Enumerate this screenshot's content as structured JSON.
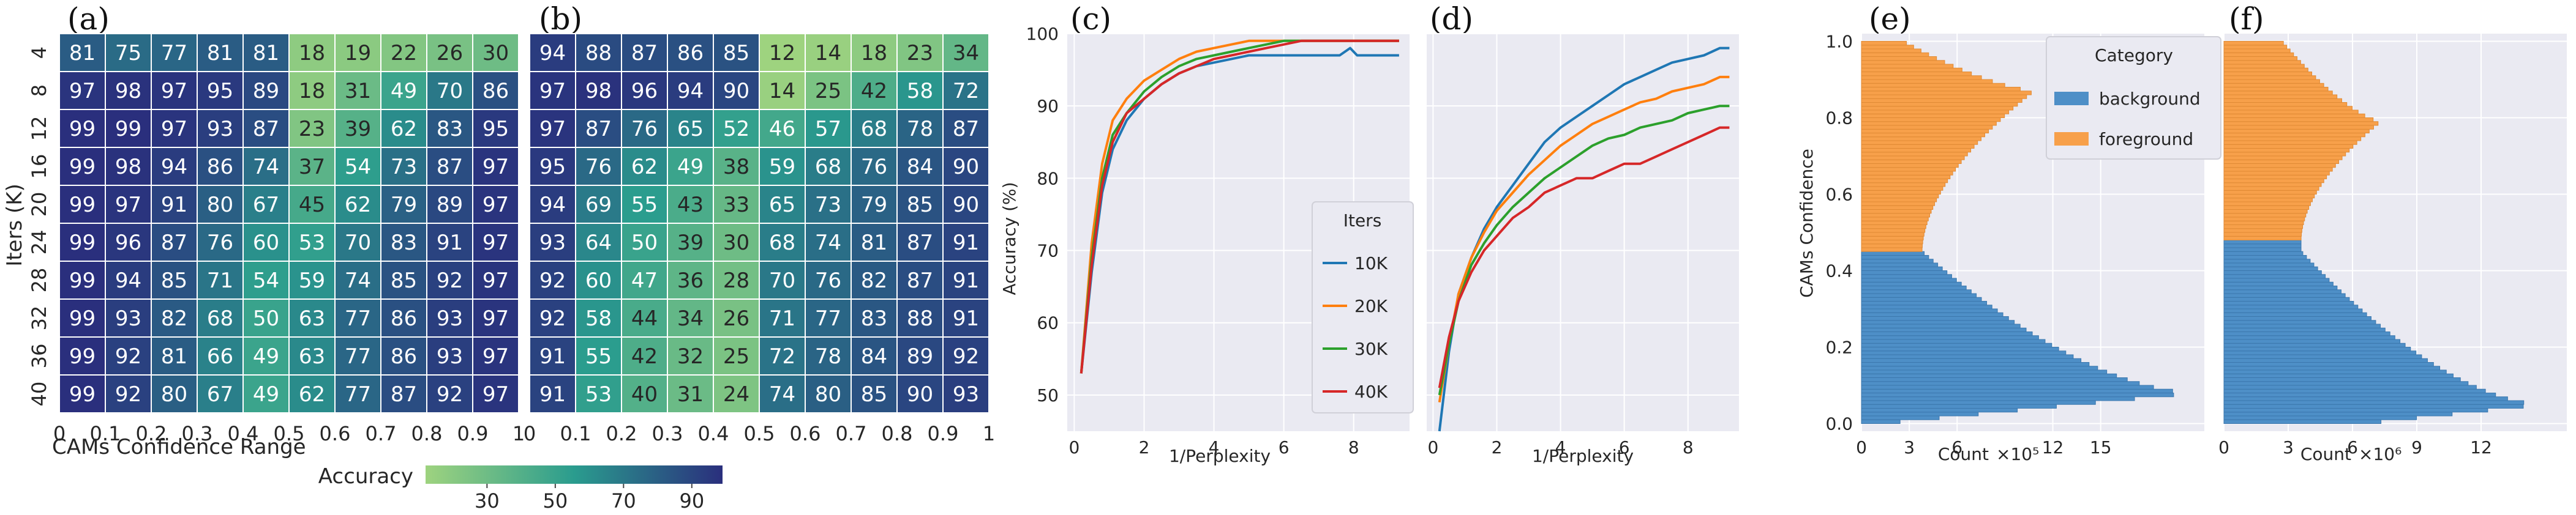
{
  "colors": {
    "heat_low": "#9ed37f",
    "heat_mid": "#2a9c8e",
    "heat_high": "#2a2f7d",
    "panel_bg": "#eaeaf2",
    "grid": "#ffffff",
    "series": [
      "#1f77b4",
      "#ff7f0e",
      "#2ca02c",
      "#d62728"
    ],
    "hist_background": "#4e8fc7",
    "hist_foreground": "#f7a04a"
  },
  "chart_data": [
    {
      "id": "a",
      "label": "(a)",
      "type": "heatmap",
      "ylabel": "Iters (K)",
      "xlabel": "CAMs Confidence Range",
      "rows": [
        "4",
        "8",
        "12",
        "16",
        "20",
        "24",
        "28",
        "32",
        "36",
        "40"
      ],
      "xticks": [
        "0",
        "0.1",
        "0.2",
        "0.3",
        "0.4",
        "0.5",
        "0.6",
        "0.7",
        "0.8",
        "0.9",
        "1"
      ],
      "values": [
        [
          81,
          75,
          77,
          81,
          81,
          18,
          19,
          22,
          26,
          30
        ],
        [
          97,
          98,
          97,
          95,
          89,
          18,
          31,
          49,
          70,
          86
        ],
        [
          99,
          99,
          97,
          93,
          87,
          23,
          39,
          62,
          83,
          95
        ],
        [
          99,
          98,
          94,
          86,
          74,
          37,
          54,
          73,
          87,
          97
        ],
        [
          99,
          97,
          91,
          80,
          67,
          45,
          62,
          79,
          89,
          97
        ],
        [
          99,
          96,
          87,
          76,
          60,
          53,
          70,
          83,
          91,
          97
        ],
        [
          99,
          94,
          85,
          71,
          54,
          59,
          74,
          85,
          92,
          97
        ],
        [
          99,
          93,
          82,
          68,
          50,
          63,
          77,
          86,
          93,
          97
        ],
        [
          99,
          92,
          81,
          66,
          49,
          63,
          77,
          86,
          93,
          97
        ],
        [
          99,
          92,
          80,
          67,
          49,
          62,
          77,
          87,
          92,
          97
        ]
      ]
    },
    {
      "id": "b",
      "label": "(b)",
      "type": "heatmap",
      "xticks": [
        "0",
        "0.1",
        "0.2",
        "0.3",
        "0.4",
        "0.5",
        "0.6",
        "0.7",
        "0.8",
        "0.9",
        "1"
      ],
      "values": [
        [
          94,
          88,
          87,
          86,
          85,
          12,
          14,
          18,
          23,
          34
        ],
        [
          97,
          98,
          96,
          94,
          90,
          14,
          25,
          42,
          58,
          72
        ],
        [
          97,
          87,
          76,
          65,
          52,
          46,
          57,
          68,
          78,
          87
        ],
        [
          95,
          76,
          62,
          49,
          38,
          59,
          68,
          76,
          84,
          90
        ],
        [
          94,
          69,
          55,
          43,
          33,
          65,
          73,
          79,
          85,
          90
        ],
        [
          93,
          64,
          50,
          39,
          30,
          68,
          74,
          81,
          87,
          91
        ],
        [
          92,
          60,
          47,
          36,
          28,
          70,
          76,
          82,
          87,
          91
        ],
        [
          92,
          58,
          44,
          34,
          26,
          71,
          77,
          83,
          88,
          91
        ],
        [
          91,
          55,
          42,
          32,
          25,
          72,
          78,
          84,
          89,
          92
        ],
        [
          91,
          53,
          40,
          31,
          24,
          74,
          80,
          85,
          90,
          93
        ]
      ]
    },
    {
      "id": "colorbar",
      "type": "heatmap",
      "title": "Accuracy",
      "range": [
        12,
        99
      ],
      "ticks": [
        "30",
        "50",
        "70",
        "90"
      ]
    },
    {
      "id": "c",
      "label": "(c)",
      "type": "line",
      "xlabel": "1/Perplexity",
      "ylabel": "Accuracy (%)",
      "xlim": [
        -0.2,
        9.6
      ],
      "ylim": [
        45,
        100
      ],
      "xticks": [
        "0",
        "2",
        "4",
        "6",
        "8"
      ],
      "yticks": [
        "50",
        "60",
        "70",
        "80",
        "90",
        "100"
      ],
      "legend": {
        "title": "Iters",
        "position": "lower-right"
      },
      "series": [
        {
          "name": "10K",
          "points": [
            [
              0.2,
              53
            ],
            [
              0.5,
              67
            ],
            [
              0.8,
              78
            ],
            [
              1.1,
              84
            ],
            [
              1.5,
              88
            ],
            [
              2,
              91
            ],
            [
              2.5,
              93
            ],
            [
              3,
              94.5
            ],
            [
              3.5,
              95.5
            ],
            [
              4,
              96
            ],
            [
              4.5,
              96.5
            ],
            [
              5,
              97
            ],
            [
              6,
              97
            ],
            [
              7,
              97
            ],
            [
              7.6,
              97
            ],
            [
              7.9,
              98
            ],
            [
              8.1,
              97
            ],
            [
              9.3,
              97
            ]
          ]
        },
        {
          "name": "20K",
          "points": [
            [
              0.2,
              53
            ],
            [
              0.5,
              71
            ],
            [
              0.8,
              82
            ],
            [
              1.1,
              88
            ],
            [
              1.5,
              91
            ],
            [
              2,
              93.5
            ],
            [
              2.5,
              95
            ],
            [
              3,
              96.5
            ],
            [
              3.5,
              97.5
            ],
            [
              4,
              98
            ],
            [
              4.5,
              98.5
            ],
            [
              5,
              99
            ],
            [
              9.3,
              99
            ]
          ]
        },
        {
          "name": "30K",
          "points": [
            [
              0.2,
              53
            ],
            [
              0.5,
              69
            ],
            [
              0.8,
              80
            ],
            [
              1.1,
              86
            ],
            [
              1.5,
              89
            ],
            [
              2,
              92
            ],
            [
              2.5,
              94
            ],
            [
              3,
              95.5
            ],
            [
              3.5,
              96.5
            ],
            [
              4,
              97
            ],
            [
              4.5,
              97.5
            ],
            [
              5,
              98
            ],
            [
              5.5,
              98.5
            ],
            [
              6,
              99
            ],
            [
              9.3,
              99
            ]
          ]
        },
        {
          "name": "40K",
          "points": [
            [
              0.2,
              53
            ],
            [
              0.5,
              68
            ],
            [
              0.8,
              79
            ],
            [
              1.1,
              85
            ],
            [
              1.5,
              89
            ],
            [
              2,
              91
            ],
            [
              2.5,
              93
            ],
            [
              3,
              94.5
            ],
            [
              3.5,
              95.5
            ],
            [
              4,
              96.5
            ],
            [
              4.5,
              97
            ],
            [
              5,
              97.5
            ],
            [
              5.5,
              98
            ],
            [
              6,
              98.5
            ],
            [
              6.5,
              99
            ],
            [
              9.3,
              99
            ]
          ]
        }
      ]
    },
    {
      "id": "d",
      "label": "(d)",
      "type": "line",
      "xlabel": "1/Perplexity",
      "xlim": [
        -0.2,
        9.6
      ],
      "ylim": [
        45,
        100
      ],
      "xticks": [
        "0",
        "2",
        "4",
        "6",
        "8"
      ],
      "series": [
        {
          "name": "10K",
          "points": [
            [
              0.2,
              45
            ],
            [
              0.5,
              56
            ],
            [
              0.8,
              64
            ],
            [
              1.2,
              69
            ],
            [
              1.6,
              73
            ],
            [
              2,
              76
            ],
            [
              2.5,
              79
            ],
            [
              3,
              82
            ],
            [
              3.5,
              85
            ],
            [
              4,
              87
            ],
            [
              4.5,
              88.5
            ],
            [
              5,
              90
            ],
            [
              5.5,
              91.5
            ],
            [
              6,
              93
            ],
            [
              6.5,
              94
            ],
            [
              7,
              95
            ],
            [
              7.5,
              96
            ],
            [
              8,
              96.5
            ],
            [
              8.5,
              97
            ],
            [
              9,
              98
            ],
            [
              9.3,
              98
            ]
          ]
        },
        {
          "name": "20K",
          "points": [
            [
              0.2,
              49
            ],
            [
              0.5,
              57
            ],
            [
              0.8,
              64
            ],
            [
              1.2,
              69
            ],
            [
              1.6,
              72.5
            ],
            [
              2,
              75.5
            ],
            [
              2.5,
              78
            ],
            [
              3,
              80.5
            ],
            [
              3.5,
              82.5
            ],
            [
              4,
              84.5
            ],
            [
              4.5,
              86
            ],
            [
              5,
              87.5
            ],
            [
              5.5,
              88.5
            ],
            [
              6,
              89.5
            ],
            [
              6.5,
              90.5
            ],
            [
              7,
              91
            ],
            [
              7.5,
              92
            ],
            [
              8,
              92.5
            ],
            [
              8.5,
              93
            ],
            [
              9,
              94
            ],
            [
              9.3,
              94
            ]
          ]
        },
        {
          "name": "30K",
          "points": [
            [
              0.2,
              50
            ],
            [
              0.5,
              57
            ],
            [
              0.8,
              63
            ],
            [
              1.2,
              68
            ],
            [
              1.6,
              71
            ],
            [
              2,
              73.5
            ],
            [
              2.5,
              76
            ],
            [
              3,
              78
            ],
            [
              3.5,
              80
            ],
            [
              4,
              81.5
            ],
            [
              4.5,
              83
            ],
            [
              5,
              84.5
            ],
            [
              5.5,
              85.5
            ],
            [
              6,
              86
            ],
            [
              6.5,
              87
            ],
            [
              7,
              87.5
            ],
            [
              7.5,
              88
            ],
            [
              8,
              89
            ],
            [
              8.5,
              89.5
            ],
            [
              9,
              90
            ],
            [
              9.3,
              90
            ]
          ]
        },
        {
          "name": "40K",
          "points": [
            [
              0.2,
              51
            ],
            [
              0.5,
              58
            ],
            [
              0.8,
              63
            ],
            [
              1.2,
              67
            ],
            [
              1.6,
              70
            ],
            [
              2,
              72
            ],
            [
              2.5,
              74.5
            ],
            [
              3,
              76
            ],
            [
              3.5,
              78
            ],
            [
              4,
              79
            ],
            [
              4.5,
              80
            ],
            [
              5,
              80
            ],
            [
              5.5,
              81
            ],
            [
              6,
              82
            ],
            [
              6.5,
              82
            ],
            [
              7,
              83
            ],
            [
              7.5,
              84
            ],
            [
              8,
              85
            ],
            [
              8.5,
              86
            ],
            [
              9,
              87
            ],
            [
              9.3,
              87
            ]
          ]
        }
      ]
    },
    {
      "id": "e",
      "label": "(e)",
      "type": "bar",
      "orientation": "horizontal-histogram",
      "ylabel": "CAMs Confidence",
      "xlabel": "Count",
      "xlabel_multiplier": "×10⁵",
      "ylim": [
        -0.02,
        1.02
      ],
      "xlim": [
        0,
        21.5
      ],
      "yticks": [
        "0.0",
        "0.2",
        "0.4",
        "0.6",
        "0.8",
        "1.0"
      ],
      "xticks": [
        "0",
        "3",
        "6",
        "12",
        "15"
      ],
      "legend": {
        "title": "Category",
        "entries": [
          "background",
          "foreground"
        ],
        "position": "top-center"
      },
      "threshold": 0.45,
      "bin_width": 0.01,
      "curve": {
        "base": 3.8,
        "bg_start": 1.2,
        "bg_peak": 20.8,
        "bg_peak_at": 0.08,
        "bg_knee_at": 0.45,
        "fg_peak": 10.8,
        "fg_peak_at": 0.87,
        "fg_end": 2.6
      }
    },
    {
      "id": "f",
      "label": "(f)",
      "type": "bar",
      "orientation": "horizontal-histogram",
      "xlabel": "Count",
      "xlabel_multiplier": "×10⁶",
      "ylim": [
        -0.02,
        1.02
      ],
      "xlim": [
        0,
        16
      ],
      "xticks": [
        "0",
        "3",
        "6",
        "9",
        "12"
      ],
      "threshold": 0.48,
      "bin_width": 0.01,
      "curve": {
        "base": 3.6,
        "bg_start": 6.5,
        "bg_peak": 14.8,
        "bg_peak_at": 0.05,
        "bg_knee_at": 0.45,
        "fg_peak": 7.3,
        "fg_peak_at": 0.79,
        "fg_end": 2.7
      }
    }
  ]
}
